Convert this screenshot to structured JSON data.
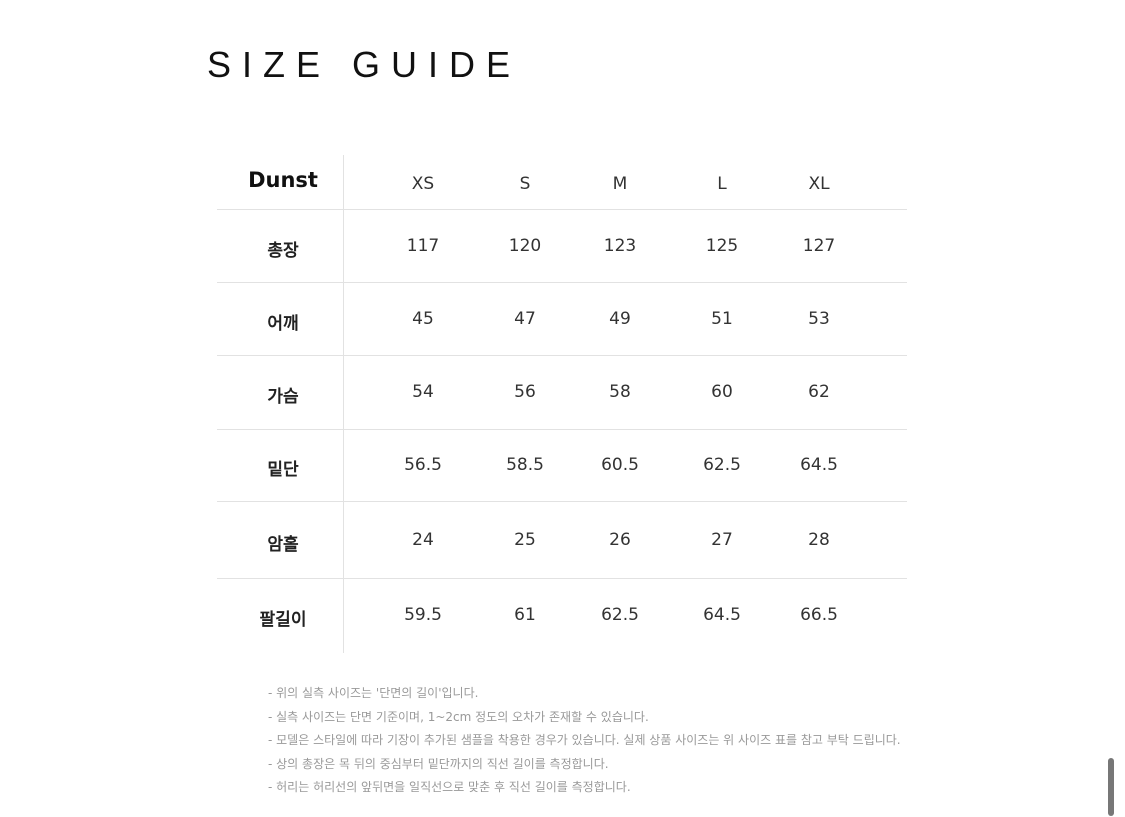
{
  "title": "SIZE GUIDE",
  "table": {
    "brand": "Dunst",
    "sizes": [
      "XS",
      "S",
      "M",
      "L",
      "XL"
    ],
    "rows": [
      {
        "label": "총장",
        "values": [
          "117",
          "120",
          "123",
          "125",
          "127"
        ]
      },
      {
        "label": "어깨",
        "values": [
          "45",
          "47",
          "49",
          "51",
          "53"
        ]
      },
      {
        "label": "가슴",
        "values": [
          "54",
          "56",
          "58",
          "60",
          "62"
        ]
      },
      {
        "label": "밑단",
        "values": [
          "56.5",
          "58.5",
          "60.5",
          "62.5",
          "64.5"
        ]
      },
      {
        "label": "암홀",
        "values": [
          "24",
          "25",
          "26",
          "27",
          "28"
        ]
      },
      {
        "label": "팔길이",
        "values": [
          "59.5",
          "61",
          "62.5",
          "64.5",
          "66.5"
        ]
      }
    ]
  },
  "notes": [
    "- 위의 실측 사이즈는 '단면의 길이'입니다.",
    "- 실측 사이즈는 단면 기준이며, 1~2cm 정도의 오차가 존재할 수 있습니다.",
    "- 모델은 스타일에 따라 기장이 추가된 샘플을 착용한 경우가 있습니다. 실제 상품 사이즈는 위 사이즈 표를 참고 부탁 드립니다.",
    "- 상의 총장은 목 뒤의 중심부터 밑단까지의 직선 길이를 측정합니다.",
    "- 허리는 허리선의 앞뒤면을 일직선으로 맞춘 후 직선 길이를 측정합니다."
  ]
}
